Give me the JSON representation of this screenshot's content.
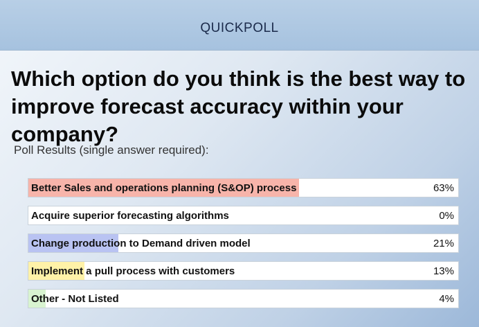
{
  "header": {
    "title": "QUICKPOLL"
  },
  "question": "Which option do you think is the best way to improve forecast accuracy within your company?",
  "subtitle": "Poll Results (single answer required):",
  "colors": {
    "fill_1": "#f7b4aa",
    "fill_2": "#ffffff",
    "fill_3": "#b9c3f2",
    "fill_4": "#fff2a8",
    "fill_5": "#d8f3d0"
  },
  "options": [
    {
      "label": "Better Sales and operations planning (S&OP) process",
      "percent": "63%",
      "value": 63
    },
    {
      "label": "Acquire superior forecasting algorithms",
      "percent": "0%",
      "value": 0
    },
    {
      "label": "Change production to Demand driven model",
      "percent": "21%",
      "value": 21
    },
    {
      "label": "Implement a pull process with customers",
      "percent": "13%",
      "value": 13
    },
    {
      "label": "Other - Not Listed",
      "percent": "4%",
      "value": 4
    }
  ]
}
